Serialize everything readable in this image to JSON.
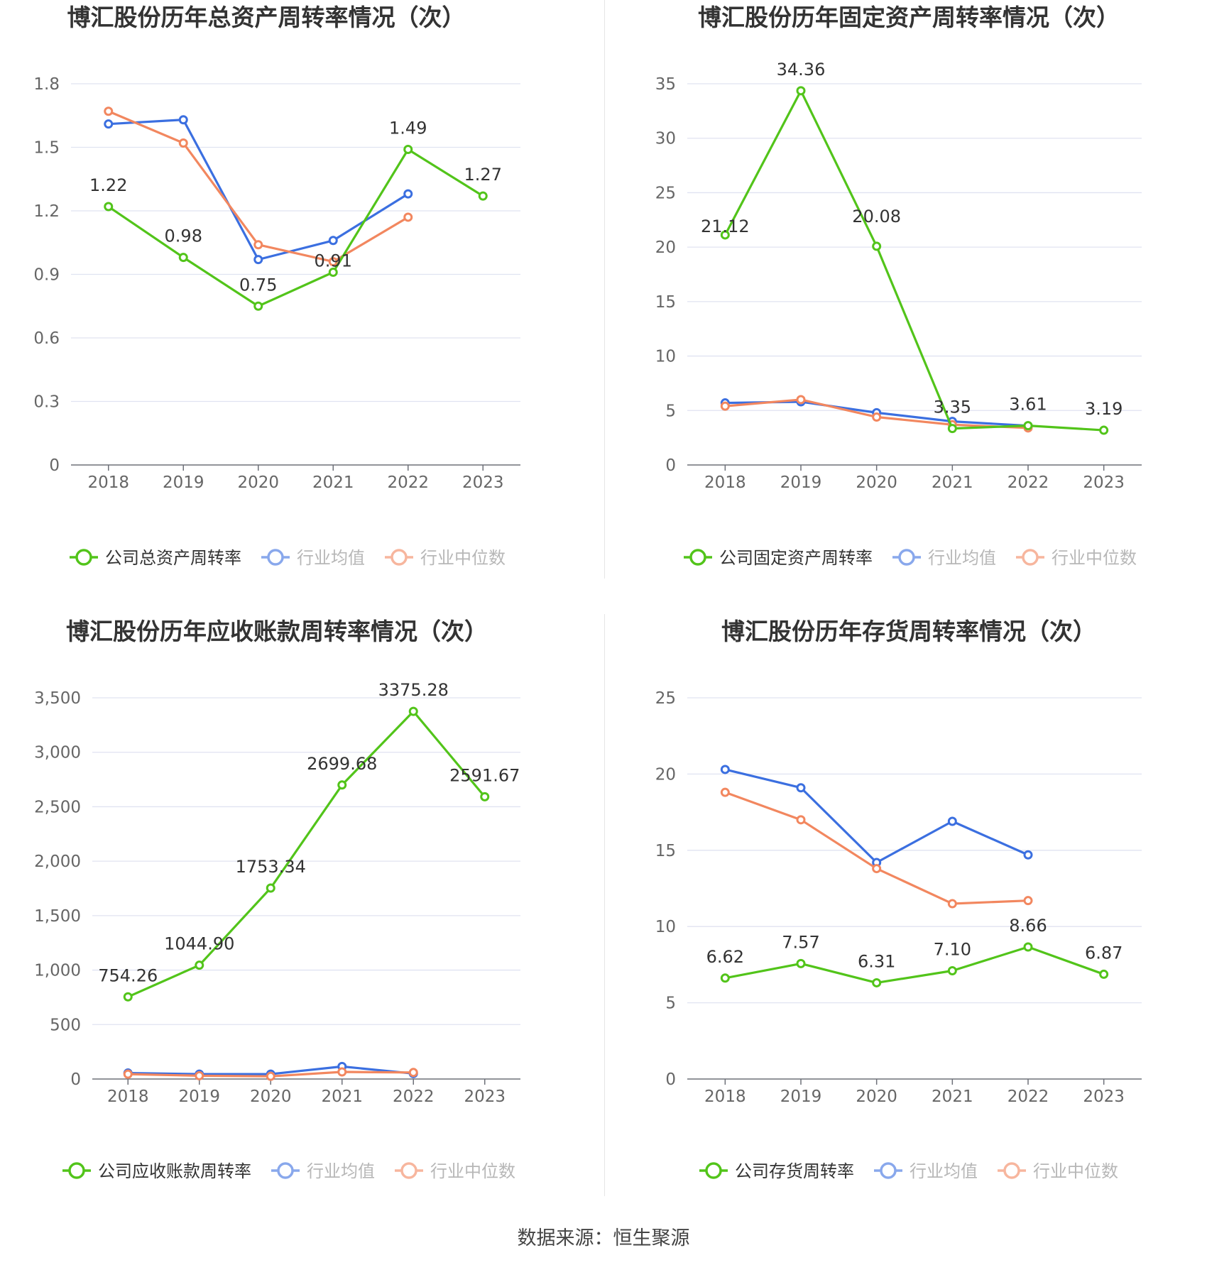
{
  "source_label": "数据来源：恒生聚源",
  "colors": {
    "company": "#52c41a",
    "avg": "#3b6fe0",
    "median": "#f2875f",
    "grid": "#e0e3f1",
    "axis": "#666666",
    "text": "#333333"
  },
  "chart_data": [
    {
      "type": "line",
      "title": "博汇股份历年总资产周转率情况（次）",
      "categories": [
        "2018",
        "2019",
        "2020",
        "2021",
        "2022",
        "2023"
      ],
      "yticks": [
        "0",
        "0.3",
        "0.6",
        "0.9",
        "1.2",
        "1.5",
        "1.8"
      ],
      "ylim": [
        0,
        1.8
      ],
      "series": [
        {
          "name": "公司总资产周转率",
          "key": "company",
          "values": [
            1.22,
            0.98,
            0.75,
            0.91,
            1.49,
            1.27
          ],
          "labels": [
            "1.22",
            "0.98",
            "0.75",
            "0.91",
            "1.49",
            "1.27"
          ]
        },
        {
          "name": "行业均值",
          "key": "avg",
          "values": [
            1.61,
            1.63,
            0.97,
            1.06,
            1.28,
            null
          ]
        },
        {
          "name": "行业中位数",
          "key": "median",
          "values": [
            1.67,
            1.52,
            1.04,
            0.96,
            1.17,
            null
          ]
        }
      ],
      "grid": true,
      "legend": "bottom"
    },
    {
      "type": "line",
      "title": "博汇股份历年固定资产周转率情况（次）",
      "categories": [
        "2018",
        "2019",
        "2020",
        "2021",
        "2022",
        "2023"
      ],
      "yticks": [
        "0",
        "5",
        "10",
        "15",
        "20",
        "25",
        "30",
        "35"
      ],
      "ylim": [
        0,
        35
      ],
      "series": [
        {
          "name": "公司固定资产周转率",
          "key": "company",
          "values": [
            21.12,
            34.36,
            20.08,
            3.35,
            3.61,
            3.19
          ],
          "labels": [
            "21.12",
            "34.36",
            "20.08",
            "3.35",
            "3.61",
            "3.19"
          ]
        },
        {
          "name": "行业均值",
          "key": "avg",
          "values": [
            5.7,
            5.8,
            4.8,
            4.0,
            3.6,
            null
          ]
        },
        {
          "name": "行业中位数",
          "key": "median",
          "values": [
            5.4,
            6.0,
            4.4,
            3.7,
            3.4,
            null
          ]
        }
      ],
      "grid": true,
      "legend": "bottom"
    },
    {
      "type": "line",
      "title": "博汇股份历年应收账款周转率情况（次）",
      "categories": [
        "2018",
        "2019",
        "2020",
        "2021",
        "2022",
        "2023"
      ],
      "yticks": [
        "0",
        "500",
        "1,000",
        "1,500",
        "2,000",
        "2,500",
        "3,000",
        "3,500"
      ],
      "ylim": [
        0,
        3500
      ],
      "series": [
        {
          "name": "公司应收账款周转率",
          "key": "company",
          "values": [
            754.26,
            1044.9,
            1753.34,
            2699.68,
            3375.28,
            2591.67
          ],
          "labels": [
            "754.26",
            "1044.90",
            "1753.34",
            "2699.68",
            "3375.28",
            "2591.67"
          ]
        },
        {
          "name": "行业均值",
          "key": "avg",
          "values": [
            55,
            45,
            45,
            115,
            50,
            null
          ]
        },
        {
          "name": "行业中位数",
          "key": "median",
          "values": [
            45,
            30,
            25,
            65,
            60,
            null
          ]
        }
      ],
      "grid": true,
      "legend": "bottom"
    },
    {
      "type": "line",
      "title": "博汇股份历年存货周转率情况（次）",
      "categories": [
        "2018",
        "2019",
        "2020",
        "2021",
        "2022",
        "2023"
      ],
      "yticks": [
        "0",
        "5",
        "10",
        "15",
        "20",
        "25"
      ],
      "ylim": [
        0,
        25
      ],
      "series": [
        {
          "name": "公司存货周转率",
          "key": "company",
          "values": [
            6.62,
            7.57,
            6.31,
            7.1,
            8.66,
            6.87
          ],
          "labels": [
            "6.62",
            "7.57",
            "6.31",
            "7.10",
            "8.66",
            "6.87"
          ]
        },
        {
          "name": "行业均值",
          "key": "avg",
          "values": [
            20.3,
            19.1,
            14.2,
            16.9,
            14.7,
            null
          ]
        },
        {
          "name": "行业中位数",
          "key": "median",
          "values": [
            18.8,
            17.0,
            13.8,
            11.5,
            11.7,
            null
          ]
        }
      ],
      "grid": true,
      "legend": "bottom"
    }
  ]
}
